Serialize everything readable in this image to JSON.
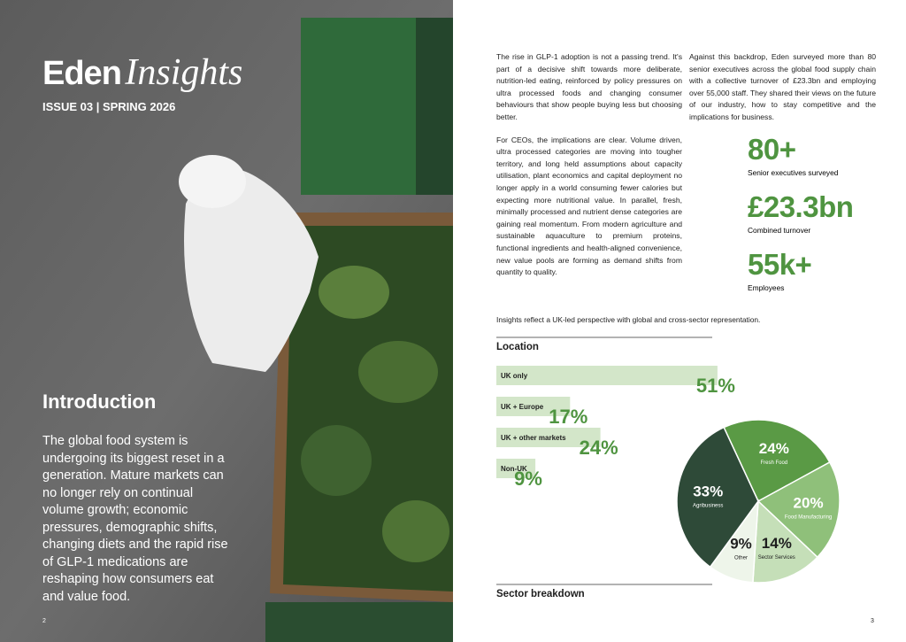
{
  "left": {
    "brand": "Eden",
    "brand_italic": "Insights",
    "issue": "ISSUE 03 | SPRING 2026",
    "heading": "Introduction",
    "body": "The global food system is undergoing its biggest reset in a generation. Mature markets can no longer rely on continual volume growth; economic pressures, demographic shifts, changing diets and the rapid rise of GLP-1 medications are reshaping how consumers eat and value food.",
    "page_number": "2"
  },
  "right": {
    "column1": [
      "The rise in GLP-1 adoption is not a passing trend. It's part of a decisive shift towards more deliberate, nutrition-led eating, reinforced by policy pressures on ultra processed foods and changing consumer behaviours that show people buying less but choosing better.",
      "For CEOs, the implications are clear. Volume driven, ultra processed categories are moving into tougher territory, and long held assumptions about capacity utilisation, plant economics and capital deployment no longer apply in a world consuming fewer calories but expecting more nutritional value. In parallel, fresh, minimally processed and nutrient dense categories are gaining real momentum. From modern agriculture and sustainable aquaculture to premium proteins, functional ingredients and health-aligned convenience, new value pools are forming as demand shifts from quantity to quality."
    ],
    "column2": "Against this backdrop, Eden surveyed more than 80 senior executives across the global food supply chain with a collective turnover of £23.3bn and employing over 55,000 staff. They shared their views on the future of our industry, how to stay competitive and the implications for business.",
    "stats": [
      {
        "value": "80+",
        "label": "Senior executives surveyed"
      },
      {
        "value": "£23.3bn",
        "label": "Combined turnover"
      },
      {
        "value": "55k+",
        "label": "Employees"
      }
    ],
    "note": "Insights reflect a UK-led perspective with global and cross-sector representation.",
    "location": {
      "type": "bar",
      "title": "Location",
      "categories": [
        "UK only",
        "UK + Europe",
        "UK + other markets",
        "Non-UK"
      ],
      "values": [
        51,
        17,
        24,
        9
      ],
      "value_labels": [
        "51%",
        "17%",
        "24%",
        "9%"
      ],
      "color": "#d3e6c9",
      "label_color": "#4f9440"
    },
    "sector": {
      "type": "pie",
      "title": "Sector breakdown",
      "categories": [
        "Fresh Food",
        "Food Manufacturing",
        "Sector Services",
        "Other",
        "Agribusiness"
      ],
      "values": [
        24,
        20,
        14,
        9,
        33
      ],
      "value_labels": [
        "24%",
        "20%",
        "14%",
        "9%",
        "33%"
      ],
      "colors": [
        "#5a9a45",
        "#8fc07a",
        "#c5dfb8",
        "#eef5ea",
        "#2e4a38"
      ]
    },
    "page_number": "3"
  }
}
